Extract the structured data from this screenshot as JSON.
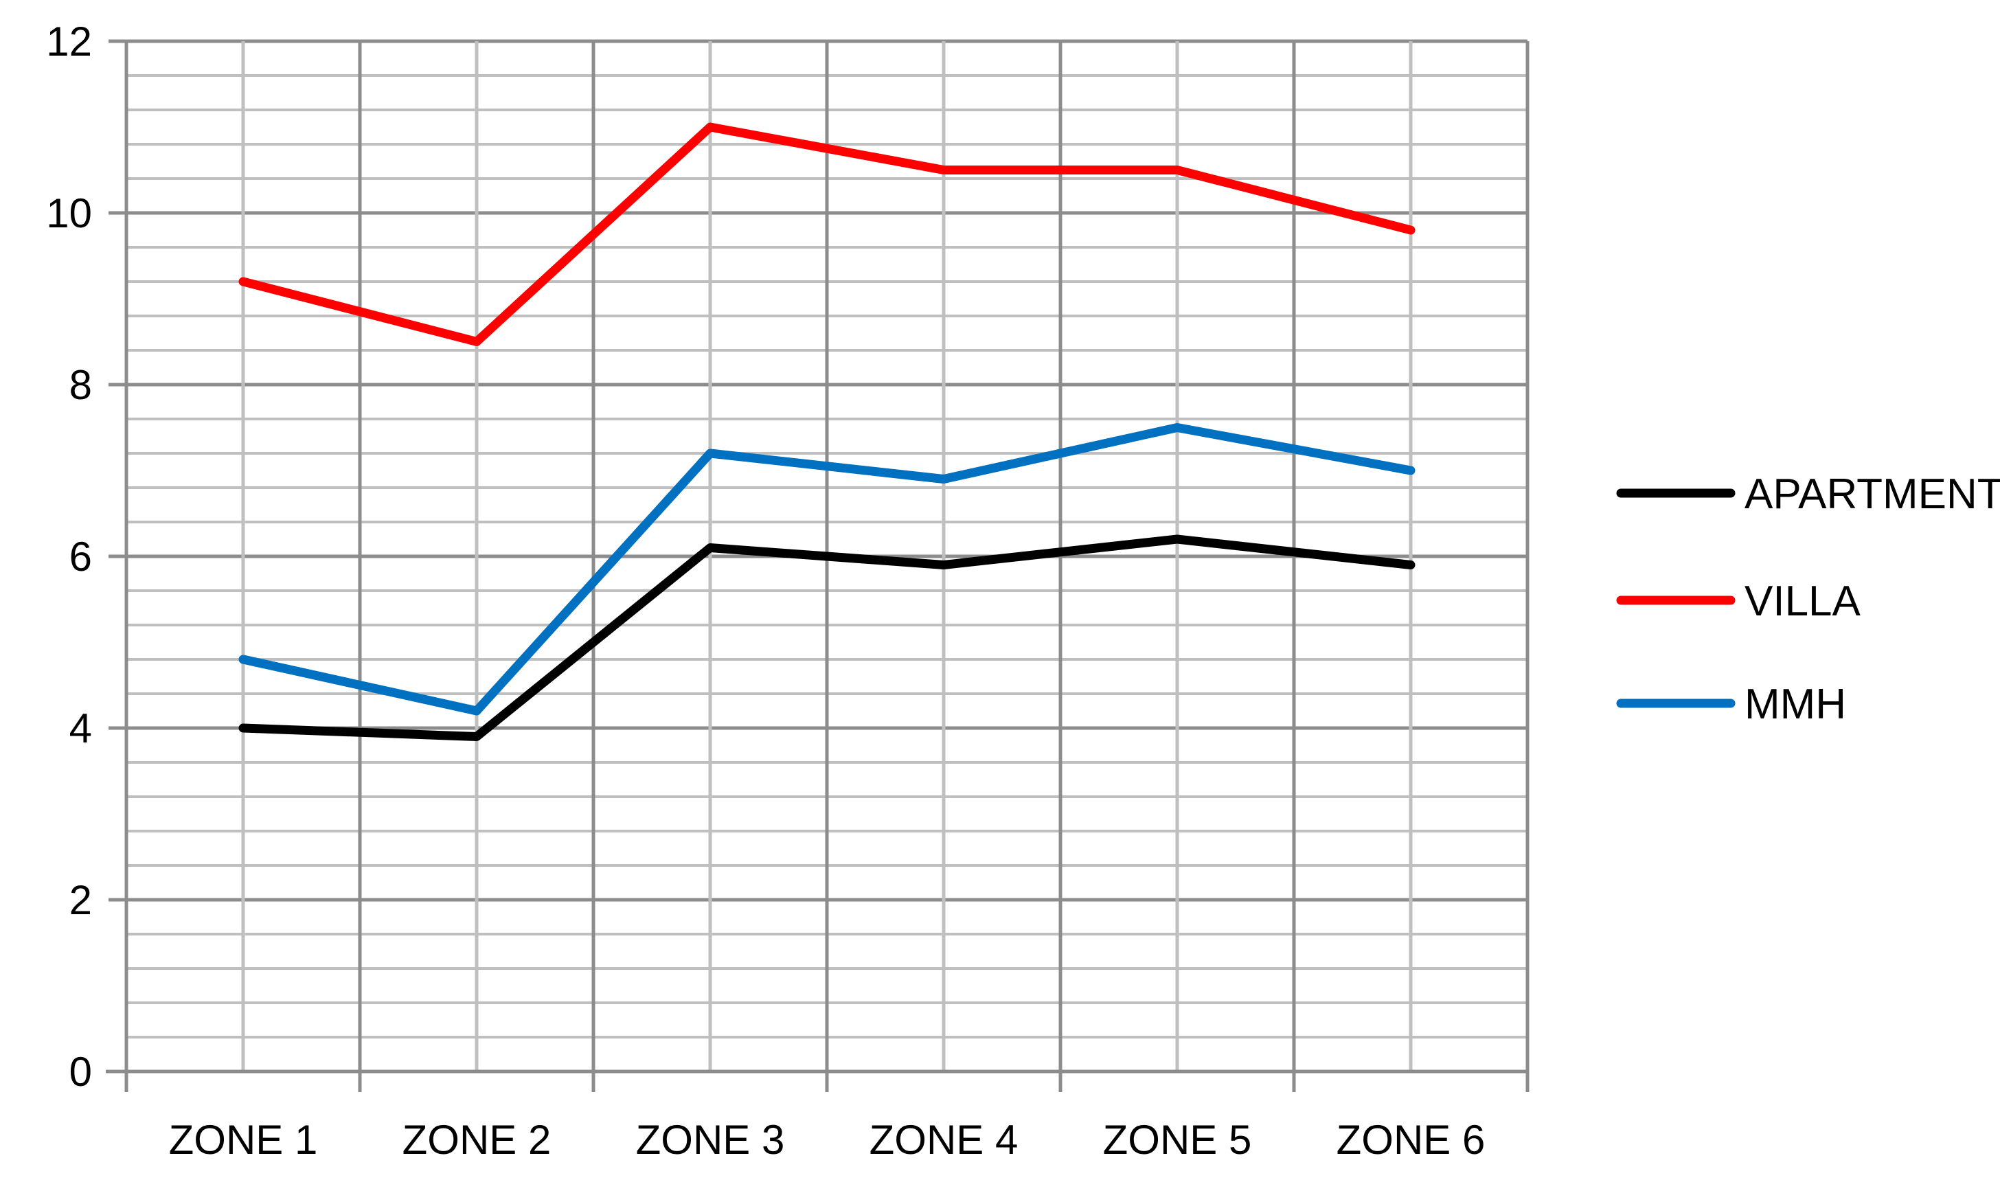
{
  "chart_data": {
    "type": "line",
    "title": "",
    "xlabel": "",
    "ylabel": "",
    "categories": [
      "ZONE 1",
      "ZONE 2",
      "ZONE 3",
      "ZONE 4",
      "ZONE 5",
      "ZONE 6"
    ],
    "ylim": [
      0,
      12
    ],
    "y_major_ticks": [
      0,
      2,
      4,
      6,
      8,
      10,
      12
    ],
    "y_minor_step": 0.4,
    "grid": true,
    "legend_position": "right",
    "series": [
      {
        "name": "APARTMENT",
        "color": "#000000",
        "values": [
          4.0,
          3.9,
          6.1,
          5.9,
          6.2,
          5.9
        ]
      },
      {
        "name": "VILLA",
        "color": "#ff0000",
        "values": [
          9.2,
          8.5,
          11.0,
          10.5,
          10.5,
          9.8
        ]
      },
      {
        "name": "MMH",
        "color": "#0070c0",
        "values": [
          4.8,
          4.2,
          7.2,
          6.9,
          7.5,
          7.0
        ]
      }
    ]
  }
}
